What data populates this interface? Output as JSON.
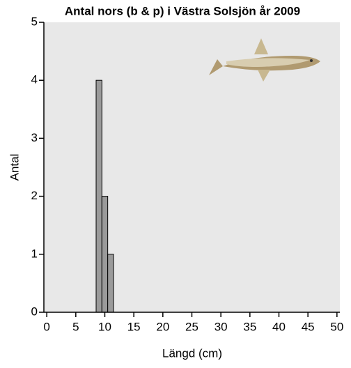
{
  "chart_data": {
    "type": "histogram",
    "title": "Antal nors (b & p) i Västra Solsjön år 2009",
    "x_label": "Längd (cm)",
    "y_label": "Antal",
    "bins": [
      8.5,
      9.5,
      10.5,
      11.5
    ],
    "counts": [
      4,
      2,
      1
    ],
    "color": "#9a9a9a",
    "xlim": [
      -0.5,
      50.5
    ],
    "xticks": [
      0,
      5,
      10,
      15,
      20,
      25,
      30,
      35,
      40,
      45,
      50
    ],
    "ylim": [
      0,
      5
    ],
    "yticks": [
      0,
      1,
      2,
      3,
      4,
      5
    ]
  }
}
